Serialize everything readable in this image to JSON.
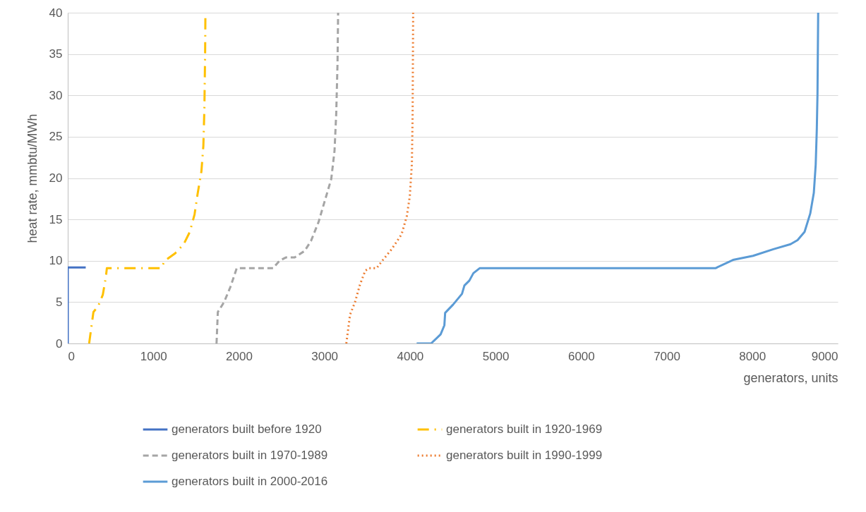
{
  "chart_data": {
    "type": "line",
    "xlabel": "generators, units",
    "ylabel": "heat rate, mmbtu/MWh",
    "xlim": [
      0,
      9000
    ],
    "xticks": [
      0,
      1000,
      2000,
      3000,
      4000,
      5000,
      6000,
      7000,
      8000,
      9000
    ],
    "ylim": [
      0,
      40
    ],
    "yticks": [
      0,
      5,
      10,
      15,
      20,
      25,
      30,
      35,
      40
    ],
    "grid": "y",
    "legend": "bottom",
    "series": [
      {
        "name": "generators built before 1920",
        "color": "#4472c4",
        "line_style": "solid",
        "x": [
          0,
          0,
          210
        ],
        "values": [
          0,
          9.2,
          9.2
        ]
      },
      {
        "name": "generators built in 1920-1969",
        "color": "#ffc000",
        "line_style": "dashdot",
        "x": [
          250,
          300,
          355,
          410,
          445,
          457,
          1090,
          1135,
          1255,
          1355,
          1427,
          1482,
          1518,
          1562,
          1585,
          1597,
          1606,
          1609
        ],
        "values": [
          0,
          3.8,
          4.5,
          5.9,
          8,
          9.1,
          9.1,
          10,
          10.9,
          12,
          13.5,
          15.6,
          18.1,
          20.8,
          23.9,
          28.4,
          35.5,
          40
        ]
      },
      {
        "name": "generators built in 1970-1989",
        "color": "#a5a5a5",
        "line_style": "dashed",
        "x": [
          1739,
          1754,
          1827,
          1900,
          1975,
          2400,
          2475,
          2549,
          2652,
          2770,
          2843,
          2932,
          3003,
          3080,
          3118,
          3138,
          3153,
          3160
        ],
        "values": [
          0,
          3.8,
          5,
          6.8,
          9.1,
          9.1,
          10,
          10.4,
          10.4,
          11.2,
          12.4,
          14.7,
          17.2,
          19.9,
          23.3,
          27.8,
          33.9,
          40
        ]
      },
      {
        "name": "generators built in 1990-1999",
        "color": "#ed7d31",
        "line_style": "dotted",
        "x": [
          3256,
          3300,
          3358,
          3415,
          3477,
          3523,
          3610,
          3668,
          3786,
          3902,
          3963,
          3998,
          4022,
          4031,
          4037
        ],
        "values": [
          0,
          3.5,
          5,
          7.1,
          8.8,
          9.1,
          9.1,
          9.9,
          11.4,
          13.2,
          15.4,
          17.8,
          21.7,
          27.8,
          40
        ]
      },
      {
        "name": "generators built in 2000-2016",
        "color": "#5b9bd5",
        "line_style": "solid",
        "x": [
          4078,
          4247,
          4358,
          4402,
          4411,
          4504,
          4608,
          4636,
          4694,
          4741,
          4814,
          7570,
          7776,
          8010,
          8247,
          8448,
          8530,
          8612,
          8678,
          8720,
          8742,
          8755,
          8763,
          8771
        ],
        "values": [
          0,
          0,
          1.1,
          2.2,
          3.7,
          4.7,
          6,
          7,
          7.6,
          8.5,
          9.1,
          9.1,
          10.1,
          10.6,
          11.4,
          12,
          12.5,
          13.5,
          15.7,
          18.2,
          21.6,
          25.9,
          30.2,
          40
        ]
      }
    ]
  }
}
